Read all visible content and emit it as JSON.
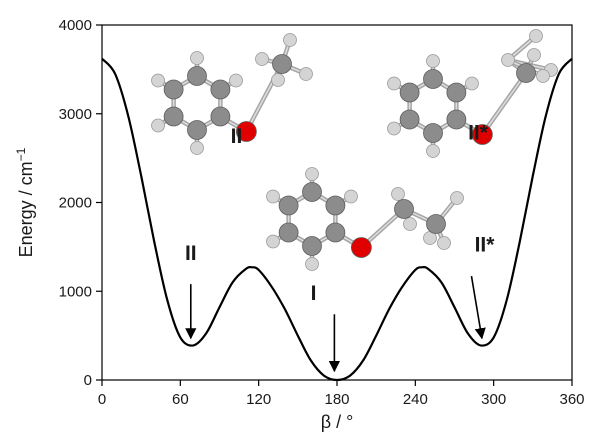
{
  "chart_data": {
    "type": "line",
    "xlabel": "β / °",
    "ylabel_main": "Energy / cm",
    "ylabel_sup": "−1",
    "xlim": [
      0,
      360
    ],
    "ylim": [
      0,
      4000
    ],
    "xticks": [
      0,
      60,
      120,
      180,
      240,
      300,
      360
    ],
    "yticks": [
      0,
      1000,
      2000,
      3000,
      4000
    ],
    "grid": false,
    "legend": "none",
    "series": [
      {
        "x": [
          0,
          10,
          20,
          30,
          40,
          50,
          60,
          70,
          80,
          90,
          100,
          110,
          115,
          120,
          130,
          140,
          150,
          160,
          170,
          180,
          190,
          200,
          210,
          220,
          230,
          240,
          245,
          250,
          260,
          270,
          280,
          290,
          300,
          310,
          320,
          330,
          340,
          350,
          360
        ],
        "y": [
          3620,
          3450,
          2980,
          2300,
          1560,
          900,
          480,
          390,
          530,
          820,
          1100,
          1250,
          1270,
          1240,
          1050,
          800,
          500,
          220,
          50,
          0,
          50,
          220,
          500,
          800,
          1050,
          1240,
          1270,
          1250,
          1100,
          820,
          530,
          390,
          480,
          900,
          1560,
          2300,
          2980,
          3450,
          3620
        ]
      }
    ],
    "annotations": [
      {
        "label": "II",
        "text_x": 68,
        "text_y": 1350,
        "tail_x": 68,
        "tail_y": 1080,
        "head_x": 68,
        "head_y": 470
      },
      {
        "label": "I",
        "text_x": 162,
        "text_y": 900,
        "tail_x": 178,
        "tail_y": 740,
        "head_x": 178,
        "head_y": 100
      },
      {
        "label": "II*",
        "text_x": 293,
        "text_y": 1450,
        "tail_x": 283,
        "tail_y": 1170,
        "head_x": 291,
        "head_y": 470
      },
      {
        "label": "II",
        "text_x": 103,
        "text_y": 2670
      },
      {
        "label": "II*",
        "text_x": 288,
        "text_y": 2710
      }
    ],
    "colors": {
      "curve": "#000000",
      "carbon": "#8c8c8c",
      "hydrogen": "#d4d4d4",
      "oxygen": "#e00000"
    }
  }
}
